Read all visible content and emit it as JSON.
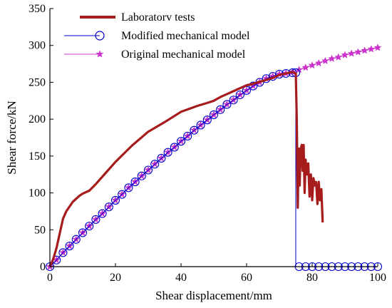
{
  "chart_data": {
    "type": "line",
    "title": "",
    "xlabel": "Shear displacement/mm",
    "ylabel": "Shear force/kN",
    "xlim": [
      0,
      100
    ],
    "ylim": [
      0,
      350
    ],
    "xticks": [
      0,
      20,
      40,
      60,
      80,
      100
    ],
    "yticks": [
      0,
      50,
      100,
      150,
      200,
      250,
      300,
      350
    ],
    "grid": false,
    "legend_position": "top-left",
    "series": [
      {
        "name": "Laboratorv tests",
        "color": "#a61c1c",
        "style": "thick-line",
        "x": [
          0,
          1,
          2,
          3,
          4,
          5,
          7,
          9,
          10,
          12,
          14,
          16,
          18,
          20,
          25,
          30,
          35,
          40,
          45,
          48,
          50,
          52,
          55,
          58,
          60,
          62,
          65,
          68,
          70,
          72,
          73,
          74,
          75,
          75.3,
          75.6,
          75.9,
          76.2,
          76.5,
          76.8,
          77.1,
          77.4,
          77.7,
          78.0,
          78.4,
          78.8,
          79.2,
          79.6,
          80.0,
          80.4,
          80.8,
          81.2,
          81.6,
          82.0,
          82.4,
          82.8,
          83.2
        ],
        "y": [
          0,
          10,
          25,
          45,
          65,
          75,
          88,
          96,
          99,
          103,
          112,
          122,
          132,
          142,
          164,
          183,
          196,
          210,
          218,
          222,
          225,
          230,
          236,
          242,
          246,
          248,
          252,
          256,
          260,
          262,
          263,
          264,
          262,
          200,
          80,
          160,
          110,
          160,
          165,
          130,
          165,
          100,
          145,
          125,
          140,
          95,
          125,
          90,
          120,
          110,
          115,
          85,
          115,
          90,
          105,
          60
        ]
      },
      {
        "name": "Modified mechanical model",
        "color": "#0000cc",
        "style": "circles",
        "x": [
          0,
          2,
          4,
          6,
          8,
          10,
          12,
          14,
          16,
          18,
          20,
          22,
          24,
          26,
          28,
          30,
          32,
          34,
          36,
          38,
          40,
          42,
          44,
          46,
          48,
          50,
          52,
          54,
          56,
          58,
          60,
          62,
          64,
          66,
          68,
          70,
          72,
          74,
          75,
          75,
          76,
          78,
          80,
          82,
          84,
          86,
          88,
          90,
          92,
          94,
          96,
          98,
          100
        ],
        "y": [
          0,
          9,
          19,
          28,
          37,
          46,
          55,
          64,
          72,
          81,
          90,
          98,
          107,
          115,
          123,
          131,
          139,
          147,
          155,
          162,
          170,
          177,
          185,
          192,
          199,
          206,
          213,
          220,
          226,
          233,
          239,
          245,
          250,
          255,
          258,
          261,
          262,
          263,
          263,
          0,
          0,
          0,
          0,
          0,
          0,
          0,
          0,
          0,
          0,
          0,
          0,
          0,
          0
        ]
      },
      {
        "name": "Original mechanical model",
        "color": "#cc33cc",
        "style": "stars",
        "x": [
          0,
          2,
          4,
          6,
          8,
          10,
          12,
          14,
          16,
          18,
          20,
          22,
          24,
          26,
          28,
          30,
          32,
          34,
          36,
          38,
          40,
          42,
          44,
          46,
          48,
          50,
          52,
          54,
          56,
          58,
          60,
          62,
          64,
          66,
          68,
          70,
          72,
          74,
          76,
          78,
          80,
          82,
          84,
          86,
          88,
          90,
          92,
          94,
          96,
          98,
          100
        ],
        "y": [
          0,
          9,
          19,
          28,
          37,
          46,
          55,
          64,
          72,
          81,
          90,
          98,
          107,
          115,
          123,
          131,
          139,
          147,
          155,
          162,
          170,
          177,
          185,
          192,
          199,
          206,
          213,
          220,
          226,
          233,
          239,
          245,
          250,
          255,
          258,
          261,
          262,
          264,
          267,
          270,
          273,
          276,
          279,
          282,
          284,
          287,
          289,
          291,
          293,
          295,
          297
        ]
      }
    ]
  }
}
